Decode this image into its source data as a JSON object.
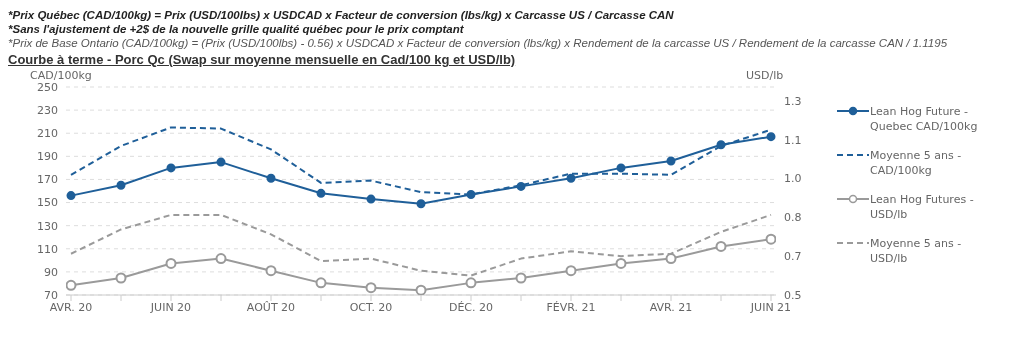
{
  "chart_data": {
    "type": "line",
    "title": "Courbe à terme - Porc Qc (Swap sur moyenne mensuelle en Cad/100 kg et USD/lb)",
    "annotations": [
      "*Prix Québec (CAD/100kg) = Prix (USD/100lbs) x USDCAD x Facteur de conversion (lbs/kg) x Carcasse US / Carcasse CAN",
      "*Sans l'ajustement de +2$ de la nouvelle grille qualité québec pour le prix comptant",
      "*Prix de Base Ontario (CAD/100kg) = (Prix (USD/100lbs) - 0.56) x USDCAD x Facteur de conversion (lbs/kg) x Rendement de la carcasse US / Rendement de la carcasse CAN / 1.1195"
    ],
    "ylabel": "CAD/100kg",
    "y2label": "USD/lb",
    "categories": [
      "AVR. 20",
      null,
      "JUIN 20",
      null,
      "AOÛT 20",
      null,
      "OCT. 20",
      null,
      "DÉC. 20",
      null,
      "FÉVR. 21",
      null,
      "AVR. 21",
      null,
      "JUIN 21"
    ],
    "series": [
      {
        "name": "Lean Hog Future - Quebec CAD/100kg",
        "color": "#1f5f99",
        "marker": "circle",
        "line_style": "solid",
        "values": [
          156,
          165,
          180,
          185,
          171,
          158,
          153,
          149,
          157,
          164,
          171,
          180,
          186,
          200,
          207
        ]
      },
      {
        "name": "Moyenne 5 ans - CAD/100kg",
        "color": "#1f5f99",
        "marker": "none",
        "line_style": "dashed",
        "values": [
          174,
          199,
          215,
          214,
          196,
          167,
          169,
          159,
          157,
          165,
          175,
          175,
          174,
          199,
          213
        ]
      },
      {
        "name": "Lean Hog Futures - USD/lb",
        "color": "#9a9a9a",
        "marker": "circle",
        "line_style": "solid",
        "axis": "y2",
        "values": [
          0.54,
          0.57,
          0.63,
          0.65,
          0.6,
          0.55,
          0.53,
          0.52,
          0.55,
          0.57,
          0.6,
          0.63,
          0.65,
          0.7,
          0.73
        ]
      },
      {
        "name": "Moyenne 5 ans - USD/lb",
        "color": "#9a9a9a",
        "marker": "none",
        "line_style": "dashed",
        "axis": "y2",
        "values": [
          0.67,
          0.77,
          0.83,
          0.83,
          0.75,
          0.64,
          0.65,
          0.6,
          0.58,
          0.65,
          0.68,
          0.66,
          0.67,
          0.76,
          0.83
        ]
      }
    ],
    "ylim": [
      70,
      250
    ],
    "yticks": [
      70,
      90,
      110,
      130,
      150,
      170,
      190,
      210,
      230,
      250
    ],
    "y2lim": [
      0.5,
      1.357
    ],
    "y2ticks": [
      0.5,
      {
        "value": 0.66,
        "label": "0.7"
      },
      {
        "value": 0.82,
        "label": "0.8"
      },
      {
        "value": 0.98,
        "label": "1.0"
      },
      {
        "value": 1.14,
        "label": "1.1"
      },
      {
        "value": 1.3,
        "label": "1.3"
      }
    ],
    "grid": "y",
    "legend": "right"
  }
}
